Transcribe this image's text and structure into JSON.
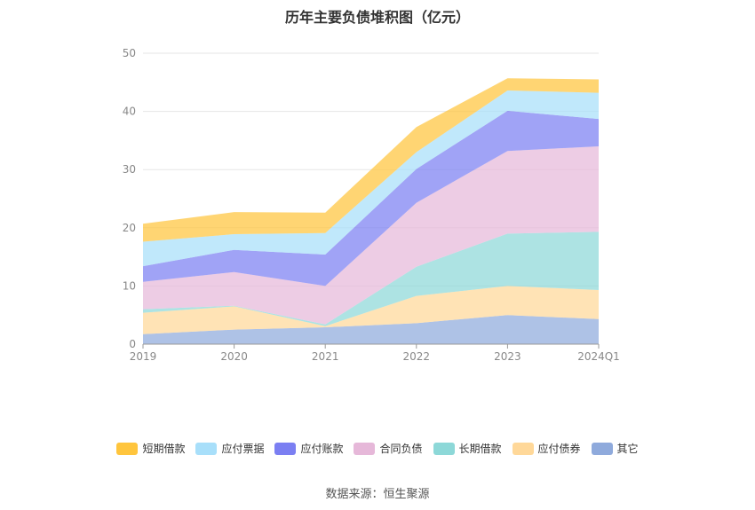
{
  "chart_data": {
    "type": "area",
    "stacked": true,
    "title": "历年主要负债堆积图（亿元）",
    "categories": [
      "2019",
      "2020",
      "2021",
      "2022",
      "2023",
      "2024Q1"
    ],
    "ylim": [
      0,
      50
    ],
    "yticks": [
      0,
      10,
      20,
      30,
      40,
      50
    ],
    "grid": true,
    "legend_position": "bottom",
    "series": [
      {
        "name": "其它",
        "color": "#8FAADC",
        "values": [
          1.7,
          2.5,
          2.9,
          3.6,
          5.0,
          4.3
        ]
      },
      {
        "name": "应付债券",
        "color": "#FFD899",
        "values": [
          3.7,
          4.0,
          0.2,
          4.7,
          5.0,
          5.0
        ]
      },
      {
        "name": "长期借款",
        "color": "#8DD8D8",
        "values": [
          0.6,
          0.1,
          0.3,
          5.0,
          9.0,
          10.0
        ]
      },
      {
        "name": "合同负债",
        "color": "#E6B8D9",
        "values": [
          4.7,
          5.8,
          6.6,
          11.0,
          14.2,
          14.7
        ]
      },
      {
        "name": "应付账款",
        "color": "#7B7FF2",
        "values": [
          2.7,
          3.8,
          5.4,
          5.8,
          6.9,
          4.7
        ]
      },
      {
        "name": "应付票据",
        "color": "#A8DFFA",
        "values": [
          4.2,
          2.7,
          3.7,
          2.9,
          3.5,
          4.5
        ]
      },
      {
        "name": "短期借款",
        "color": "#FFC53D",
        "values": [
          3.1,
          3.8,
          3.5,
          4.3,
          2.1,
          2.3
        ]
      }
    ],
    "legend_order": [
      "短期借款",
      "应付票据",
      "应付账款",
      "合同负债",
      "长期借款",
      "应付债券",
      "其它"
    ]
  },
  "source": "数据来源：恒生聚源"
}
